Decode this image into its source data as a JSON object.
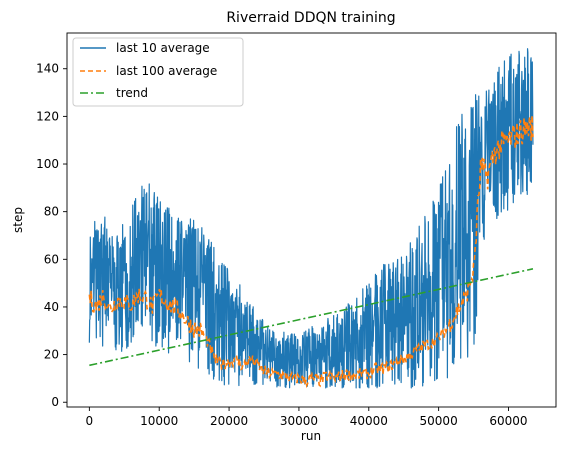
{
  "chart_data": {
    "type": "line",
    "title": "Riverraid DDQN training",
    "xlabel": "run",
    "ylabel": "step",
    "xlim": [
      -3200,
      66800
    ],
    "ylim": [
      -2,
      155
    ],
    "xticks": [
      0,
      10000,
      20000,
      30000,
      40000,
      50000,
      60000
    ],
    "yticks": [
      0,
      20,
      40,
      60,
      80,
      100,
      120,
      140
    ],
    "legend": "top-left",
    "grid": false,
    "series": [
      {
        "name": "last 10 average",
        "style": "solid",
        "color": "#1f77b4",
        "x": [
          0,
          2000,
          4000,
          6000,
          8000,
          10000,
          12000,
          14000,
          16000,
          18000,
          20000,
          22000,
          24000,
          26000,
          28000,
          30000,
          32000,
          34000,
          36000,
          38000,
          40000,
          42000,
          44000,
          46000,
          48000,
          50000,
          52000,
          54000,
          55000,
          56000,
          57000,
          58000,
          59000,
          60000,
          61000,
          62000,
          63000,
          63500
        ],
        "low": [
          25,
          22,
          20,
          24,
          25,
          22,
          20,
          18,
          12,
          8,
          7,
          6,
          6,
          6,
          6,
          6,
          6,
          6,
          6,
          6,
          6,
          6,
          6,
          6,
          7,
          8,
          10,
          15,
          18,
          60,
          70,
          75,
          80,
          80,
          85,
          85,
          85,
          85
        ],
        "high": [
          75,
          80,
          70,
          82,
          95,
          85,
          80,
          78,
          75,
          65,
          55,
          48,
          38,
          30,
          30,
          28,
          32,
          35,
          38,
          45,
          50,
          58,
          60,
          70,
          78,
          90,
          110,
          130,
          140,
          125,
          135,
          138,
          142,
          145,
          148,
          150,
          148,
          145
        ]
      },
      {
        "name": "last 100 average",
        "style": "dashed",
        "color": "#ff7f0e",
        "x": [
          0,
          1000,
          2000,
          3000,
          4000,
          5000,
          6000,
          7000,
          8000,
          9000,
          10000,
          11000,
          12000,
          13000,
          14000,
          15000,
          16000,
          17000,
          18000,
          19000,
          20000,
          21000,
          22000,
          23000,
          24000,
          25000,
          26000,
          27000,
          28000,
          29000,
          30000,
          31000,
          32000,
          33000,
          34000,
          35000,
          36000,
          37000,
          38000,
          39000,
          40000,
          41000,
          42000,
          43000,
          44000,
          45000,
          46000,
          47000,
          48000,
          49000,
          50000,
          51000,
          52000,
          53000,
          54000,
          55000,
          56000,
          57000,
          58000,
          59000,
          60000,
          61000,
          62000,
          63000,
          63500
        ],
        "values": [
          44,
          40,
          45,
          39,
          43,
          42,
          41,
          45,
          44,
          40,
          45,
          42,
          40,
          38,
          34,
          31,
          30,
          25,
          18,
          16,
          17,
          18,
          15,
          18,
          16,
          13,
          12,
          12,
          11,
          10,
          10,
          9,
          10,
          9,
          11,
          10,
          11,
          12,
          11,
          12,
          12,
          14,
          14,
          15,
          17,
          18,
          20,
          22,
          24,
          25,
          27,
          30,
          35,
          40,
          45,
          55,
          98,
          95,
          105,
          108,
          110,
          112,
          114,
          116,
          115
        ]
      },
      {
        "name": "trend",
        "style": "dashdot",
        "color": "#2ca02c",
        "x": [
          0,
          63500
        ],
        "values": [
          15.5,
          56
        ]
      }
    ]
  }
}
